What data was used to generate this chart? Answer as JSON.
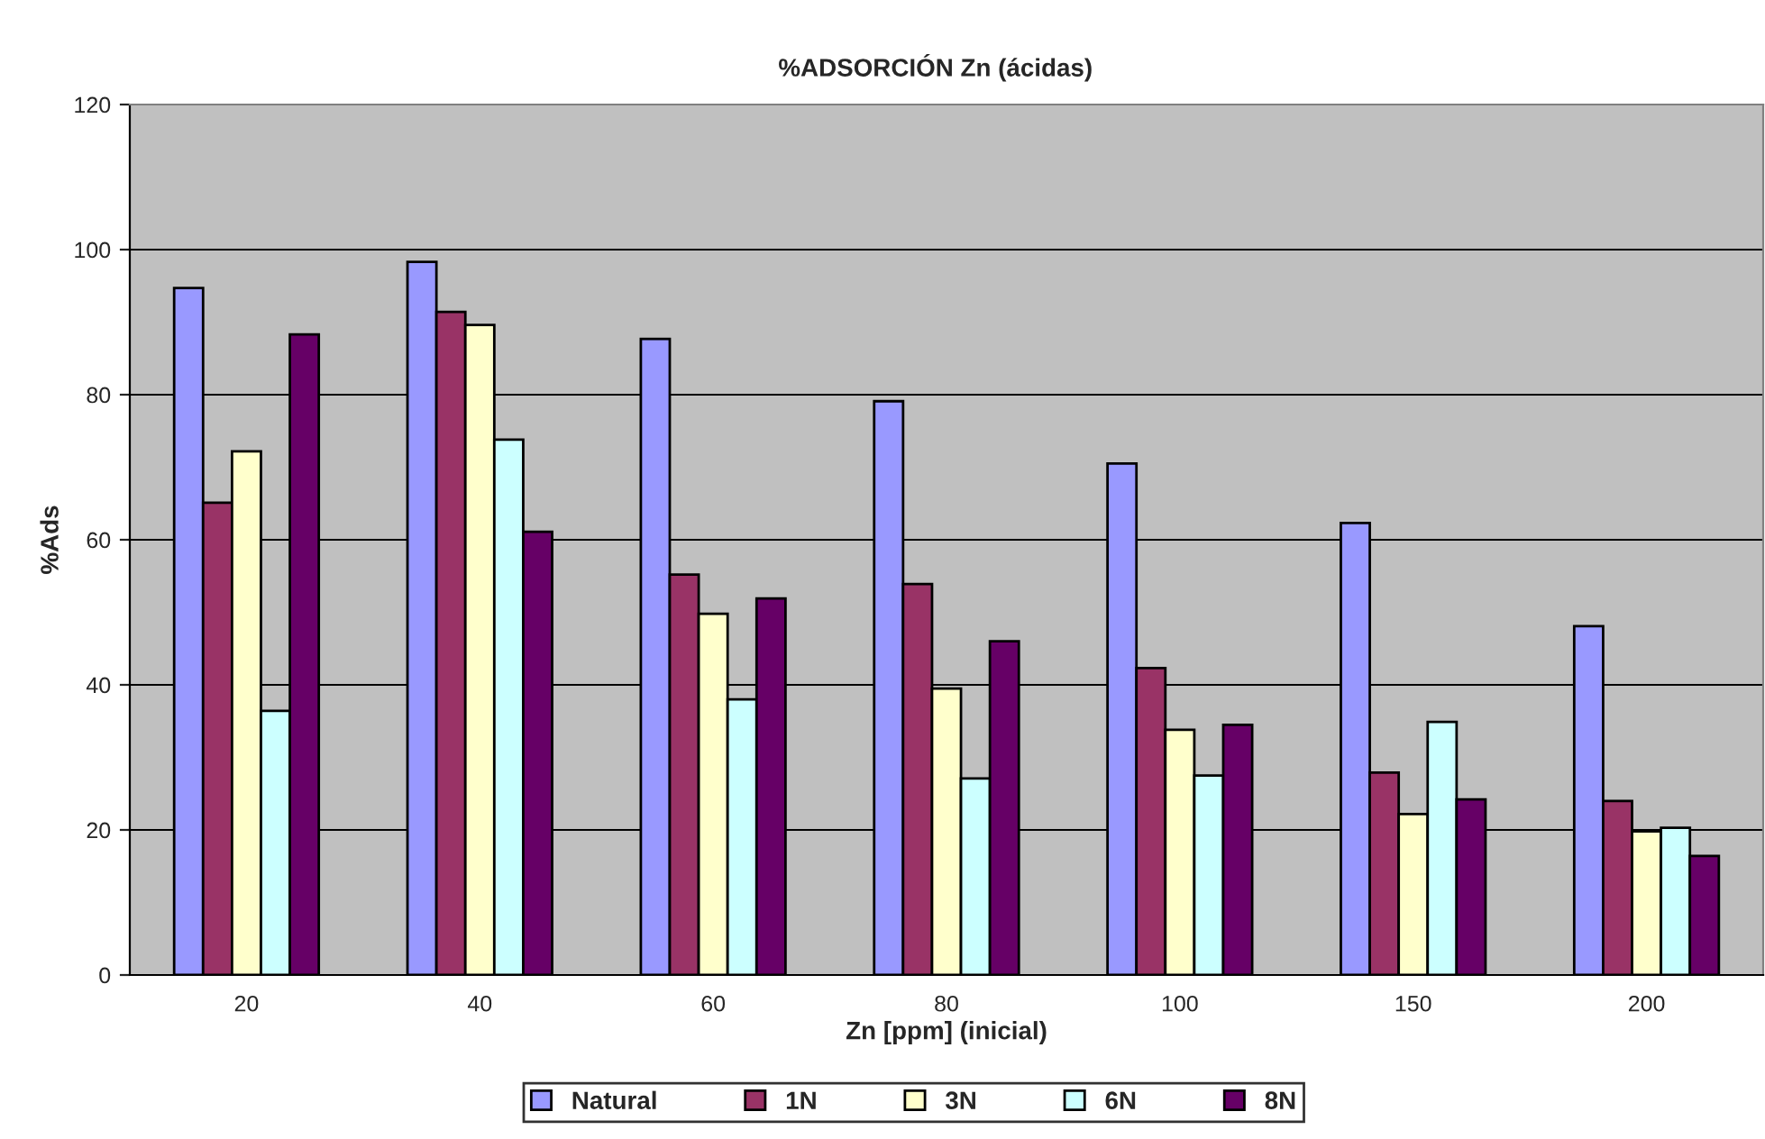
{
  "chart_data": {
    "type": "bar",
    "title": "%ADSORCIÓN Zn (ácidas)",
    "xlabel": "Zn [ppm] (inicial)",
    "ylabel": "%Ads",
    "categories": [
      "20",
      "40",
      "60",
      "80",
      "100",
      "150",
      "200"
    ],
    "series": [
      {
        "name": "Natural",
        "color": "#9999ff",
        "values": [
          94.7,
          98.3,
          87.7,
          79.1,
          70.5,
          62.3,
          48.1
        ]
      },
      {
        "name": "1N",
        "color": "#993366",
        "values": [
          65.1,
          91.4,
          55.2,
          53.9,
          42.3,
          27.9,
          24.0
        ]
      },
      {
        "name": "3N",
        "color": "#ffffcc",
        "values": [
          72.2,
          89.6,
          49.8,
          39.5,
          33.8,
          22.2,
          19.8
        ]
      },
      {
        "name": "6N",
        "color": "#ccffff",
        "values": [
          36.4,
          73.8,
          38.0,
          27.1,
          27.5,
          34.9,
          20.3
        ]
      },
      {
        "name": "8N",
        "color": "#660066",
        "values": [
          88.3,
          61.1,
          51.9,
          46.0,
          34.5,
          24.2,
          16.4
        ]
      }
    ],
    "ylim": [
      0,
      120
    ],
    "yticks": [
      0,
      20,
      40,
      60,
      80,
      100,
      120
    ],
    "grid": "y",
    "legend": "bottom"
  }
}
